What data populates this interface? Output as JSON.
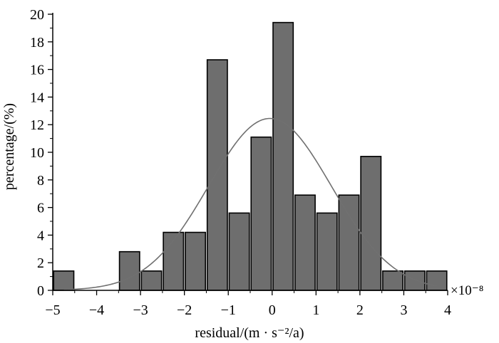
{
  "chart_data": {
    "type": "bar",
    "xlabel": "residual/(m · s⁻²/a)",
    "ylabel": "percentage/(%)",
    "x_multiplier": "×10⁻⁸",
    "xlim": [
      -5,
      4
    ],
    "ylim": [
      0,
      20
    ],
    "x_ticks": [
      -5,
      -4,
      -3,
      -2,
      -1,
      0,
      1,
      2,
      3,
      4
    ],
    "y_ticks": [
      0,
      2,
      4,
      6,
      8,
      10,
      12,
      14,
      16,
      18,
      20
    ],
    "x_tick_labels": [
      "−5",
      "−4",
      "−3",
      "−2",
      "−1",
      "0",
      "1",
      "2",
      "3",
      "4"
    ],
    "y_tick_labels": [
      "0",
      "2",
      "4",
      "6",
      "8",
      "10",
      "12",
      "14",
      "16",
      "18",
      "20"
    ],
    "bin_width": 0.5,
    "bins": [
      {
        "x_center": -4.75,
        "value": 1.4
      },
      {
        "x_center": -3.25,
        "value": 2.8
      },
      {
        "x_center": -2.75,
        "value": 1.4
      },
      {
        "x_center": -2.25,
        "value": 4.2
      },
      {
        "x_center": -1.75,
        "value": 4.2
      },
      {
        "x_center": -1.25,
        "value": 16.7
      },
      {
        "x_center": -0.75,
        "value": 5.6
      },
      {
        "x_center": -0.25,
        "value": 11.1
      },
      {
        "x_center": 0.25,
        "value": 19.4
      },
      {
        "x_center": 0.75,
        "value": 6.9
      },
      {
        "x_center": 1.25,
        "value": 5.6
      },
      {
        "x_center": 1.75,
        "value": 6.9
      },
      {
        "x_center": 2.25,
        "value": 9.7
      },
      {
        "x_center": 2.75,
        "value": 1.4
      },
      {
        "x_center": 3.25,
        "value": 1.4
      },
      {
        "x_center": 3.75,
        "value": 1.4
      }
    ],
    "fit_curve": {
      "type": "normal",
      "mean": -0.05,
      "sd": 1.4,
      "peak": 12.45,
      "x_range": [
        -4.75,
        3.75
      ]
    },
    "bar_color": "#6e6e6e",
    "bar_edge_color": "#000000",
    "curve_color": "#707070",
    "grid": false,
    "legend": "none"
  }
}
